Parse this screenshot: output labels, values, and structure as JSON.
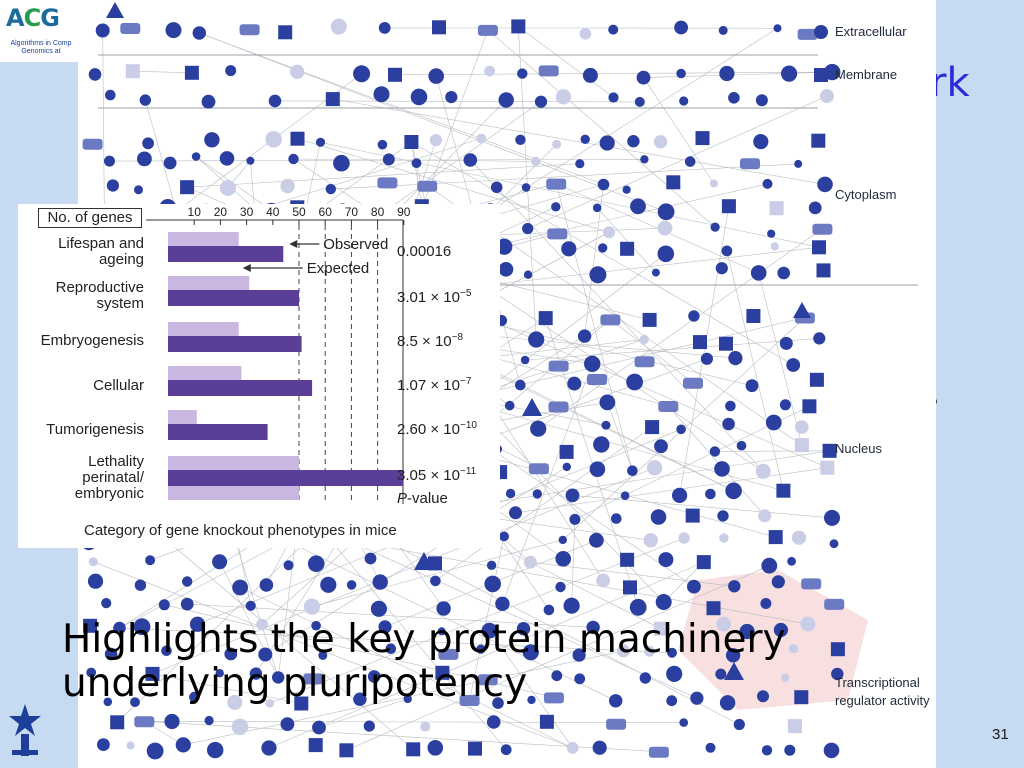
{
  "logo": {
    "letters_a": "A",
    "letters_c": "C",
    "letters_g": "G",
    "subtitle": "Algorithms in Comp Genomics at"
  },
  "title_fragment": "rk",
  "network": {
    "locations": [
      "Extracellular",
      "Membrane",
      "Cytoplasm",
      "Nucleus",
      "Transcriptional regulator activity"
    ],
    "legend": {
      "Extracellular": "circle",
      "Membrane": "square"
    }
  },
  "inset_chart": {
    "header": "No. of genes",
    "ticks": [
      "10",
      "20",
      "30",
      "40",
      "50",
      "60",
      "70",
      "80",
      "90"
    ],
    "observed_label": "Observed",
    "expected_label": "Expected",
    "xlabel": "Category of gene knockout phenotypes in mice",
    "pvalue_header_italic": "P",
    "pvalue_header_rest": "-value",
    "categories": [
      "Lifespan and\nageing",
      "Reproductive\nsystem",
      "Embryogenesis",
      "Cellular",
      "Tumorigenesis",
      "Lethality\nperinatal/\nembryonic"
    ],
    "pvalues": [
      {
        "base": "0.00016",
        "exp": ""
      },
      {
        "base": "3.01 × 10",
        "exp": "−5"
      },
      {
        "base": "8.5 × 10",
        "exp": "−8"
      },
      {
        "base": "1.07 × 10",
        "exp": "−7"
      },
      {
        "base": "2.60 × 10",
        "exp": "−10"
      },
      {
        "base": "3.05 × 10",
        "exp": "−11"
      }
    ]
  },
  "chart_data": {
    "type": "bar",
    "categories": [
      "Lifespan and ageing",
      "Reproductive system",
      "Embryogenesis",
      "Cellular",
      "Tumorigenesis",
      "Lethality perinatal/embryonic"
    ],
    "series": [
      {
        "name": "Observed",
        "values": [
          44,
          50,
          51,
          55,
          38,
          91
        ]
      },
      {
        "name": "Expected",
        "values": [
          27,
          31,
          27,
          28,
          11,
          50
        ]
      }
    ],
    "xlabel": "Category of gene knockout phenotypes in mice",
    "xlim": [
      0,
      90
    ],
    "ticks": [
      10,
      20,
      30,
      40,
      50,
      60,
      70,
      80,
      90
    ],
    "colors": {
      "Observed": "#5b3e98",
      "Expected": "#c9b7e2"
    }
  },
  "caption": {
    "line1": "Highlights the key protein machinery",
    "line2": "underlying pluripotency"
  },
  "slide_number": "31"
}
